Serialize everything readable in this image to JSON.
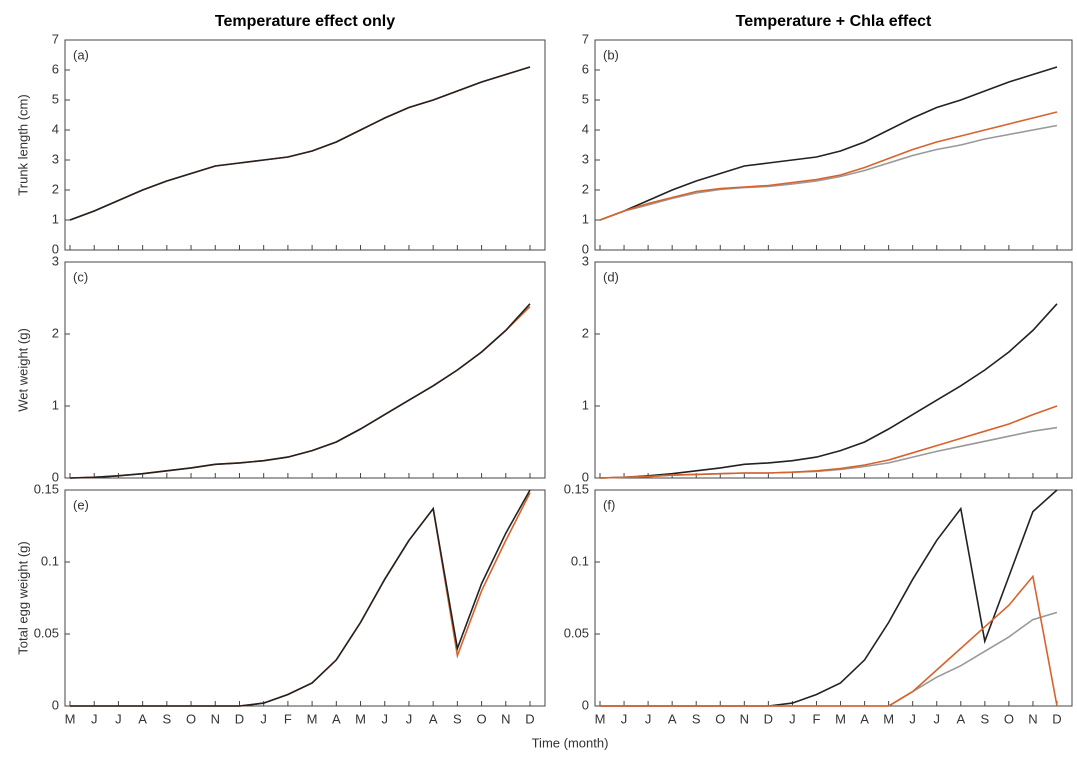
{
  "figure": {
    "x_label": "Time (month)"
  },
  "chart_data": [
    {
      "type": "line",
      "title": "Temperature effect only",
      "panel_label": "(a)",
      "y_label": "Trunk length (cm)",
      "ylim": [
        0,
        7
      ],
      "yticks": [
        0,
        1,
        2,
        3,
        4,
        5,
        6,
        7
      ],
      "series": [
        {
          "color": "#d9622b",
          "values": [
            1.0,
            1.3,
            1.65,
            2.0,
            2.3,
            2.55,
            2.8,
            2.9,
            3.0,
            3.1,
            3.3,
            3.6,
            4.0,
            4.4,
            4.75,
            5.0,
            5.3,
            5.6,
            5.85,
            6.1
          ]
        },
        {
          "color": "#222222",
          "values": [
            1.0,
            1.3,
            1.65,
            2.0,
            2.3,
            2.55,
            2.8,
            2.9,
            3.0,
            3.1,
            3.3,
            3.6,
            4.0,
            4.4,
            4.75,
            5.0,
            5.3,
            5.6,
            5.85,
            6.1
          ]
        }
      ]
    },
    {
      "type": "line",
      "title": "Temperature + Chla effect",
      "panel_label": "(b)",
      "ylim": [
        0,
        7
      ],
      "yticks": [
        0,
        1,
        2,
        3,
        4,
        5,
        6,
        7
      ],
      "series": [
        {
          "color": "#222222",
          "values": [
            1.0,
            1.3,
            1.65,
            2.0,
            2.3,
            2.55,
            2.8,
            2.9,
            3.0,
            3.1,
            3.3,
            3.6,
            4.0,
            4.4,
            4.75,
            5.0,
            5.3,
            5.6,
            5.85,
            6.1
          ]
        },
        {
          "color": "#999999",
          "values": [
            1.0,
            1.3,
            1.5,
            1.72,
            1.9,
            2.02,
            2.08,
            2.12,
            2.2,
            2.3,
            2.45,
            2.65,
            2.9,
            3.15,
            3.35,
            3.5,
            3.7,
            3.85,
            4.0,
            4.15
          ]
        },
        {
          "color": "#d9622b",
          "values": [
            1.0,
            1.3,
            1.55,
            1.75,
            1.95,
            2.05,
            2.1,
            2.15,
            2.25,
            2.35,
            2.5,
            2.75,
            3.05,
            3.35,
            3.6,
            3.8,
            4.0,
            4.2,
            4.4,
            4.6
          ]
        }
      ]
    },
    {
      "type": "line",
      "panel_label": "(c)",
      "y_label": "Wet weight (g)",
      "ylim": [
        0,
        3
      ],
      "yticks": [
        0,
        1,
        2,
        3
      ],
      "series": [
        {
          "color": "#d9622b",
          "values": [
            0,
            0.01,
            0.03,
            0.06,
            0.1,
            0.14,
            0.19,
            0.21,
            0.24,
            0.29,
            0.38,
            0.5,
            0.68,
            0.88,
            1.08,
            1.28,
            1.5,
            1.75,
            2.05,
            2.38
          ]
        },
        {
          "color": "#222222",
          "values": [
            0,
            0.01,
            0.03,
            0.06,
            0.1,
            0.14,
            0.19,
            0.21,
            0.24,
            0.29,
            0.38,
            0.5,
            0.68,
            0.88,
            1.08,
            1.28,
            1.5,
            1.75,
            2.05,
            2.42
          ]
        }
      ]
    },
    {
      "type": "line",
      "panel_label": "(d)",
      "ylim": [
        0,
        3
      ],
      "yticks": [
        0,
        1,
        2,
        3
      ],
      "series": [
        {
          "color": "#222222",
          "values": [
            0,
            0.01,
            0.03,
            0.06,
            0.1,
            0.14,
            0.19,
            0.21,
            0.24,
            0.29,
            0.38,
            0.5,
            0.68,
            0.88,
            1.08,
            1.28,
            1.5,
            1.75,
            2.05,
            2.42
          ]
        },
        {
          "color": "#999999",
          "values": [
            0,
            0.01,
            0.02,
            0.04,
            0.05,
            0.06,
            0.07,
            0.07,
            0.08,
            0.09,
            0.12,
            0.16,
            0.21,
            0.29,
            0.37,
            0.44,
            0.51,
            0.58,
            0.65,
            0.7
          ]
        },
        {
          "color": "#d9622b",
          "values": [
            0,
            0.01,
            0.02,
            0.04,
            0.05,
            0.06,
            0.07,
            0.07,
            0.08,
            0.1,
            0.13,
            0.18,
            0.25,
            0.35,
            0.45,
            0.55,
            0.65,
            0.75,
            0.88,
            1.0
          ]
        }
      ]
    },
    {
      "type": "line",
      "panel_label": "(e)",
      "y_label": "Total egg weight (g)",
      "ylim": [
        0,
        0.15
      ],
      "yticks": [
        0,
        0.05,
        0.1,
        0.15
      ],
      "categories": [
        "M",
        "J",
        "J",
        "A",
        "S",
        "O",
        "N",
        "D",
        "J",
        "F",
        "M",
        "A",
        "M",
        "J",
        "J",
        "A",
        "S",
        "O",
        "N",
        "D"
      ],
      "series": [
        {
          "color": "#d9622b",
          "values": [
            0,
            0,
            0,
            0,
            0,
            0,
            0,
            0,
            0.002,
            0.008,
            0.016,
            0.032,
            0.058,
            0.088,
            0.115,
            0.137,
            0.035,
            0.08,
            0.115,
            0.148
          ]
        },
        {
          "color": "#222222",
          "values": [
            0,
            0,
            0,
            0,
            0,
            0,
            0,
            0,
            0.002,
            0.008,
            0.016,
            0.032,
            0.058,
            0.088,
            0.115,
            0.137,
            0.04,
            0.085,
            0.12,
            0.15
          ]
        }
      ]
    },
    {
      "type": "line",
      "panel_label": "(f)",
      "ylim": [
        0,
        0.15
      ],
      "yticks": [
        0,
        0.05,
        0.1,
        0.15
      ],
      "categories": [
        "M",
        "J",
        "J",
        "A",
        "S",
        "O",
        "N",
        "D",
        "J",
        "F",
        "M",
        "A",
        "M",
        "J",
        "J",
        "A",
        "S",
        "O",
        "N",
        "D"
      ],
      "series": [
        {
          "color": "#222222",
          "values": [
            0,
            0,
            0,
            0,
            0,
            0,
            0,
            0,
            0.002,
            0.008,
            0.016,
            0.032,
            0.058,
            0.088,
            0.115,
            0.137,
            0.045,
            0.09,
            0.135,
            0.15
          ]
        },
        {
          "color": "#999999",
          "values": [
            0,
            0,
            0,
            0,
            0,
            0,
            0,
            0,
            0,
            0,
            0,
            0,
            0,
            0.01,
            0.02,
            0.028,
            0.038,
            0.048,
            0.06,
            0.065
          ]
        },
        {
          "color": "#d9622b",
          "values": [
            0,
            0,
            0,
            0,
            0,
            0,
            0,
            0,
            0,
            0,
            0,
            0,
            0,
            0.01,
            0.025,
            0.04,
            0.055,
            0.07,
            0.09,
            0
          ]
        }
      ]
    }
  ]
}
